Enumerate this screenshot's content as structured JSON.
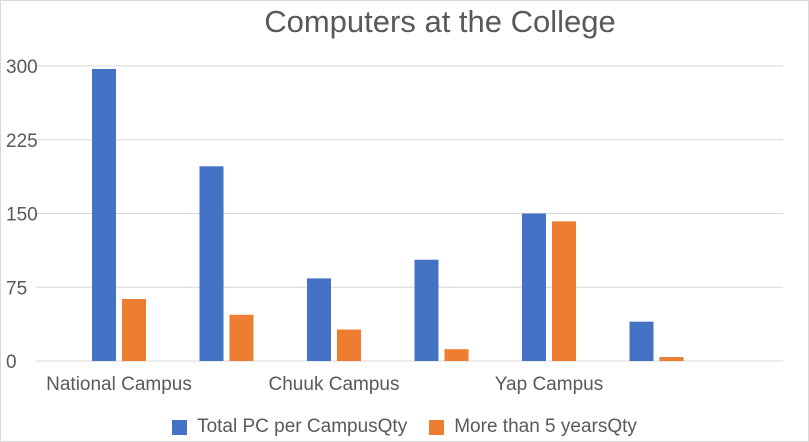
{
  "chart_data": {
    "type": "bar",
    "title": "Computers at the College",
    "categories": [
      "National Campus",
      "",
      "Chuuk Campus",
      "",
      "Yap Campus",
      ""
    ],
    "series": [
      {
        "name": "Total PC per CampusQty",
        "color": "#4472c4",
        "values": [
          297,
          198,
          84,
          103,
          150,
          40
        ]
      },
      {
        "name": "More than 5 yearsQty",
        "color": "#ed7d31",
        "values": [
          63,
          47,
          32,
          12,
          142,
          4
        ]
      }
    ],
    "y_ticks": [
      "0",
      "75",
      "150",
      "225",
      "300"
    ],
    "ylim": [
      0,
      300
    ],
    "grid": true,
    "legend_position": "bottom"
  }
}
